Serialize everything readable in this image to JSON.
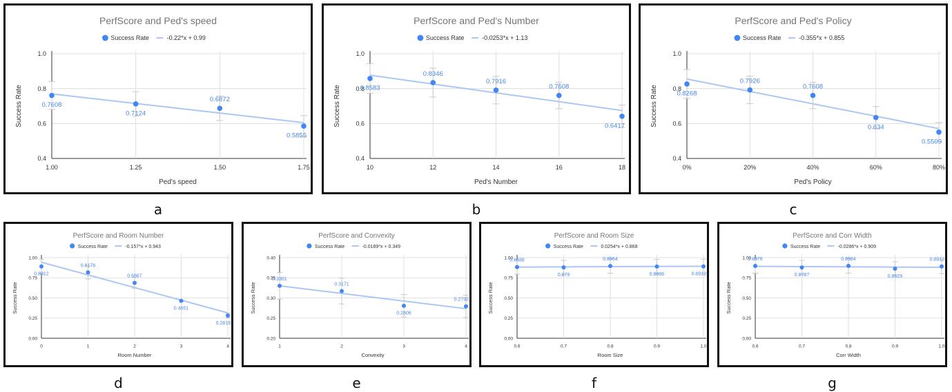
{
  "colors": {
    "point": "#4285f4",
    "trend": "#aac7f7",
    "label": "#4a86e8",
    "title": "#757575",
    "axis_text": "#333333",
    "grid": "#d9d9d9",
    "errbar": "#c8c8c8"
  },
  "chart_data": [
    {
      "type": "scatter",
      "panel_letter": "a",
      "title": "PerfScore and Ped's speed",
      "xlabel": "Ped's speed",
      "ylabel": "Success Rate",
      "legend_series": "Success Rate",
      "legend_trend": "-0.22*x + 0.99",
      "xlim": [
        1.0,
        1.75
      ],
      "ylim": [
        0.4,
        1.0
      ],
      "x_ticks": [
        "1.00",
        "1.25",
        "1.50",
        "1.75"
      ],
      "y_ticks": [
        "0.4",
        "0.6",
        "0.8",
        "1.0"
      ],
      "x": [
        1.0,
        1.25,
        1.5,
        1.75
      ],
      "y": [
        0.7608,
        0.7124,
        0.6872,
        0.5855
      ],
      "point_labels": [
        "0.7608",
        "0.7124",
        "0.6872",
        "0.5855"
      ],
      "error": [
        0.08,
        0.07,
        0.07,
        0.06
      ],
      "trend": {
        "slope": -0.22,
        "intercept": 0.99
      },
      "grid": true,
      "legend_position": "top"
    },
    {
      "type": "scatter",
      "panel_letter": "b",
      "title": "PerfScore and Ped's Number",
      "xlabel": "Ped's Number",
      "ylabel": "Success Rate",
      "legend_series": "Success Rate",
      "legend_trend": "-0.0253*x + 1.13",
      "xlim": [
        10,
        18
      ],
      "ylim": [
        0.4,
        1.0
      ],
      "x_ticks": [
        "10",
        "12",
        "14",
        "16",
        "18"
      ],
      "y_ticks": [
        "0.4",
        "0.6",
        "0.8",
        "1.0"
      ],
      "x": [
        10,
        12,
        14,
        16,
        18
      ],
      "y": [
        0.8583,
        0.8346,
        0.7916,
        0.7608,
        0.6417
      ],
      "point_labels": [
        "0.8583",
        "0.8346",
        "0.7916",
        "0.7608",
        "0.6417"
      ],
      "error": [
        0.085,
        0.083,
        0.079,
        0.076,
        0.064
      ],
      "trend": {
        "slope": -0.0253,
        "intercept": 1.13
      },
      "grid": true,
      "legend_position": "top"
    },
    {
      "type": "scatter",
      "panel_letter": "c",
      "title": "PerfScore and Ped's Policy",
      "xlabel": "Ped's Policy",
      "ylabel": "Success Rate",
      "legend_series": "Success Rate",
      "legend_trend": "-0.355*x + 0.855",
      "xlim": [
        0,
        0.8
      ],
      "ylim": [
        0.4,
        1.0
      ],
      "x_ticks": [
        "0%",
        "20%",
        "40%",
        "60%",
        "80%"
      ],
      "y_ticks": [
        "0.4",
        "0.6",
        "0.8",
        "1.0"
      ],
      "x": [
        0,
        0.2,
        0.4,
        0.6,
        0.8
      ],
      "y": [
        0.8268,
        0.7926,
        0.7608,
        0.634,
        0.5509
      ],
      "point_labels": [
        "0.8268",
        "0.7926",
        "0.7608",
        "0.634",
        "0.5509"
      ],
      "error": [
        0.083,
        0.079,
        0.076,
        0.063,
        0.055
      ],
      "trend": {
        "slope": -0.355,
        "intercept": 0.855
      },
      "grid": true,
      "legend_position": "top"
    },
    {
      "type": "scatter",
      "panel_letter": "d",
      "title": "PerfScore and Room Number",
      "xlabel": "Room Number",
      "ylabel": "Success Rate",
      "legend_series": "Success Rate",
      "legend_trend": "-0.157*x + 0.943",
      "xlim": [
        0,
        4
      ],
      "ylim": [
        0,
        1.0
      ],
      "x_ticks": [
        "0",
        "1",
        "2",
        "3",
        "4"
      ],
      "y_ticks": [
        "0.00",
        "0.25",
        "0.50",
        "0.75",
        "1.00"
      ],
      "x": [
        0,
        1,
        2,
        3,
        4
      ],
      "y": [
        0.8912,
        0.8178,
        0.6867,
        0.4651,
        0.2819
      ],
      "point_labels": [
        "0.8912",
        "0.8178",
        "0.6867",
        "0.4651",
        "0.2819"
      ],
      "error": [
        0.089,
        0.082,
        0.069,
        0.0,
        0.028
      ],
      "trend": {
        "slope": -0.157,
        "intercept": 0.943
      },
      "grid": true,
      "legend_position": "top"
    },
    {
      "type": "scatter",
      "panel_letter": "e",
      "title": "PerfScore and Convexity",
      "xlabel": "Convexity",
      "ylabel": "Success Rate",
      "legend_series": "Success Rate",
      "legend_trend": "-0.0189*x + 0.349",
      "xlim": [
        1,
        4
      ],
      "ylim": [
        0.2,
        0.4
      ],
      "x_ticks": [
        "1",
        "2",
        "3",
        "4"
      ],
      "y_ticks": [
        "0.20",
        "0.25",
        "0.30",
        "0.35",
        "0.40"
      ],
      "x": [
        1,
        2,
        3,
        4
      ],
      "y": [
        0.3301,
        0.3171,
        0.2806,
        0.2792
      ],
      "point_labels": [
        "0.3301",
        "0.3171",
        "0.2806",
        "0.2792"
      ],
      "error": [
        0.033,
        0.032,
        0.028,
        0.028
      ],
      "trend": {
        "slope": -0.0189,
        "intercept": 0.349
      },
      "grid": true,
      "legend_position": "top"
    },
    {
      "type": "scatter",
      "panel_letter": "f",
      "title": "PerfScore and Room Size",
      "xlabel": "Room Size",
      "ylabel": "Success Rate",
      "legend_series": "Success Rate",
      "legend_trend": "0.0254*x + 0.868",
      "xlim": [
        0.6,
        1.0
      ],
      "ylim": [
        0,
        1.0
      ],
      "x_ticks": [
        "0.6",
        "0.7",
        "0.8",
        "0.9",
        "1.0"
      ],
      "y_ticks": [
        "0.00",
        "0.25",
        "0.50",
        "0.75",
        "1.00"
      ],
      "x": [
        0.6,
        0.7,
        0.8,
        0.9,
        1.0
      ],
      "y": [
        0.8838,
        0.879,
        0.8964,
        0.8896,
        0.8912
      ],
      "point_labels": [
        "0.8838",
        "0.879",
        "0.8964",
        "0.8896",
        "0.8912"
      ],
      "error": [
        0.088,
        0.088,
        0.09,
        0.089,
        0.089
      ],
      "trend": {
        "slope": 0.0254,
        "intercept": 0.868
      },
      "grid": true,
      "legend_position": "top"
    },
    {
      "type": "scatter",
      "panel_letter": "g",
      "title": "PerfScore and Corr Width",
      "xlabel": "Corr Width",
      "ylabel": "Success Rate",
      "legend_series": "Success Rate",
      "legend_trend": "-0.0286*x + 0.909",
      "xlim": [
        0.6,
        1.0
      ],
      "ylim": [
        0,
        1.0
      ],
      "x_ticks": [
        "0.6",
        "0.7",
        "0.8",
        "0.9",
        "1.0"
      ],
      "y_ticks": [
        "0.00",
        "0.25",
        "0.50",
        "0.75",
        "1.00"
      ],
      "x": [
        0.6,
        0.7,
        0.8,
        0.9,
        1.0
      ],
      "y": [
        0.8976,
        0.8787,
        0.8984,
        0.8629,
        0.8912
      ],
      "point_labels": [
        "0.8976",
        "0.8787",
        "0.8984",
        "0.8629",
        "0.8912"
      ],
      "error": [
        0.09,
        0.088,
        0.09,
        0.086,
        0.089
      ],
      "trend": {
        "slope": -0.0286,
        "intercept": 0.909
      },
      "grid": true,
      "legend_position": "top"
    }
  ]
}
